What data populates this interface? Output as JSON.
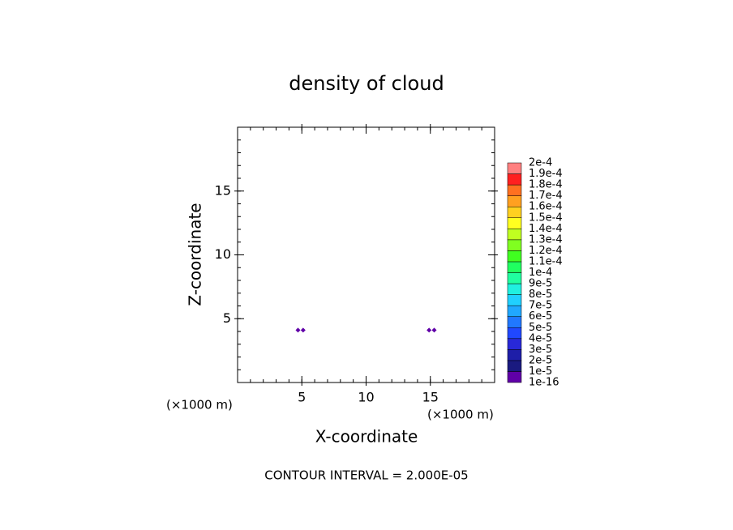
{
  "chart_data": {
    "type": "contour",
    "title": "density of cloud",
    "xlabel": "X-coordinate",
    "ylabel": "Z-coordinate",
    "x_unit_left": "(×1000 m)",
    "x_unit_right": "(×1000 m)",
    "footer": "CONTOUR INTERVAL = 2.000E-05",
    "xlim": [
      0,
      20
    ],
    "ylim": [
      0,
      20
    ],
    "xticks": [
      5,
      10,
      15
    ],
    "yticks": [
      5,
      10,
      15
    ],
    "minor_step": 1,
    "points": {
      "color": "#6000a8",
      "x": [
        4.7,
        5.1,
        14.9,
        15.3
      ],
      "y": [
        4.1,
        4.1,
        4.1,
        4.1
      ]
    },
    "colorbar": {
      "levels": [
        {
          "value": 1e-16,
          "label": "1e-16"
        },
        {
          "value": 1e-05,
          "label": "1e-5"
        },
        {
          "value": 2e-05,
          "label": "2e-5"
        },
        {
          "value": 3e-05,
          "label": "3e-5"
        },
        {
          "value": 4e-05,
          "label": "4e-5"
        },
        {
          "value": 5e-05,
          "label": "5e-5"
        },
        {
          "value": 6e-05,
          "label": "6e-5"
        },
        {
          "value": 7e-05,
          "label": "7e-5"
        },
        {
          "value": 8e-05,
          "label": "8e-5"
        },
        {
          "value": 9e-05,
          "label": "9e-5"
        },
        {
          "value": 0.0001,
          "label": "1e-4"
        },
        {
          "value": 0.00011,
          "label": "1.1e-4"
        },
        {
          "value": 0.00012,
          "label": "1.2e-4"
        },
        {
          "value": 0.00013,
          "label": "1.3e-4"
        },
        {
          "value": 0.00014,
          "label": "1.4e-4"
        },
        {
          "value": 0.00015,
          "label": "1.5e-4"
        },
        {
          "value": 0.00016,
          "label": "1.6e-4"
        },
        {
          "value": 0.00017,
          "label": "1.7e-4"
        },
        {
          "value": 0.00018,
          "label": "1.8e-4"
        },
        {
          "value": 0.00019,
          "label": "1.9e-4"
        },
        {
          "value": 0.0002,
          "label": "2e-4"
        }
      ],
      "colors": [
        "#6000a8",
        "#1a1a80",
        "#1e1ea8",
        "#2828d8",
        "#2048ff",
        "#2078ff",
        "#20a8ff",
        "#20d0ff",
        "#20f0e0",
        "#20ffa0",
        "#20ff60",
        "#40ff20",
        "#80ff20",
        "#c0ff20",
        "#ffff20",
        "#ffd020",
        "#ffa020",
        "#ff7020",
        "#ff2020",
        "#ff8080"
      ]
    }
  }
}
